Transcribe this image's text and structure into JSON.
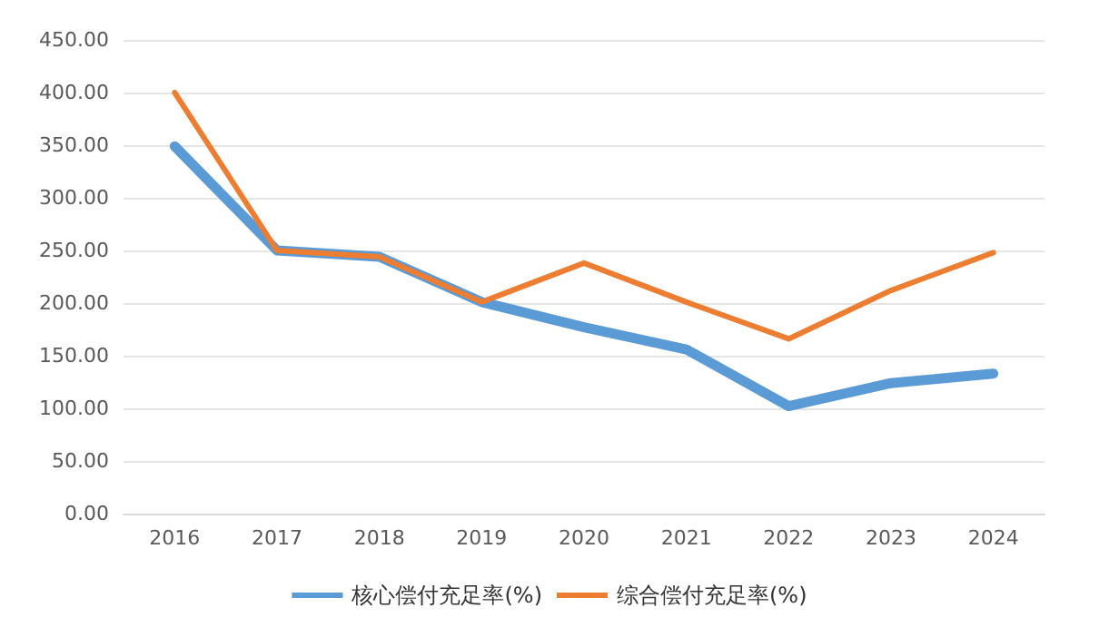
{
  "chart_data": {
    "type": "line",
    "categories": [
      "2016",
      "2017",
      "2018",
      "2019",
      "2020",
      "2021",
      "2022",
      "2023",
      "2024"
    ],
    "series": [
      {
        "name": "核心偿付充足率(%)",
        "color": "#5b9bd5",
        "values": [
          349,
          250,
          244,
          201,
          177,
          156,
          102,
          124,
          133
        ]
      },
      {
        "name": "综合偿付充足率(%)",
        "color": "#ed7d31",
        "values": [
          400,
          250,
          244,
          201,
          238,
          201,
          166,
          212,
          248
        ]
      }
    ],
    "ylim": [
      0,
      450
    ],
    "yticks": [
      {
        "value": 0,
        "label": "0.00"
      },
      {
        "value": 50,
        "label": "50.00"
      },
      {
        "value": 100,
        "label": "100.00"
      },
      {
        "value": 150,
        "label": "150.00"
      },
      {
        "value": 200,
        "label": "200.00"
      },
      {
        "value": 250,
        "label": "250.00"
      },
      {
        "value": 300,
        "label": "300.00"
      },
      {
        "value": 350,
        "label": "350.00"
      },
      {
        "value": 400,
        "label": "400.00"
      },
      {
        "value": 450,
        "label": "450.00"
      }
    ],
    "grid": "y",
    "legend": "bottom",
    "marker": "none",
    "line_style": "solid"
  }
}
